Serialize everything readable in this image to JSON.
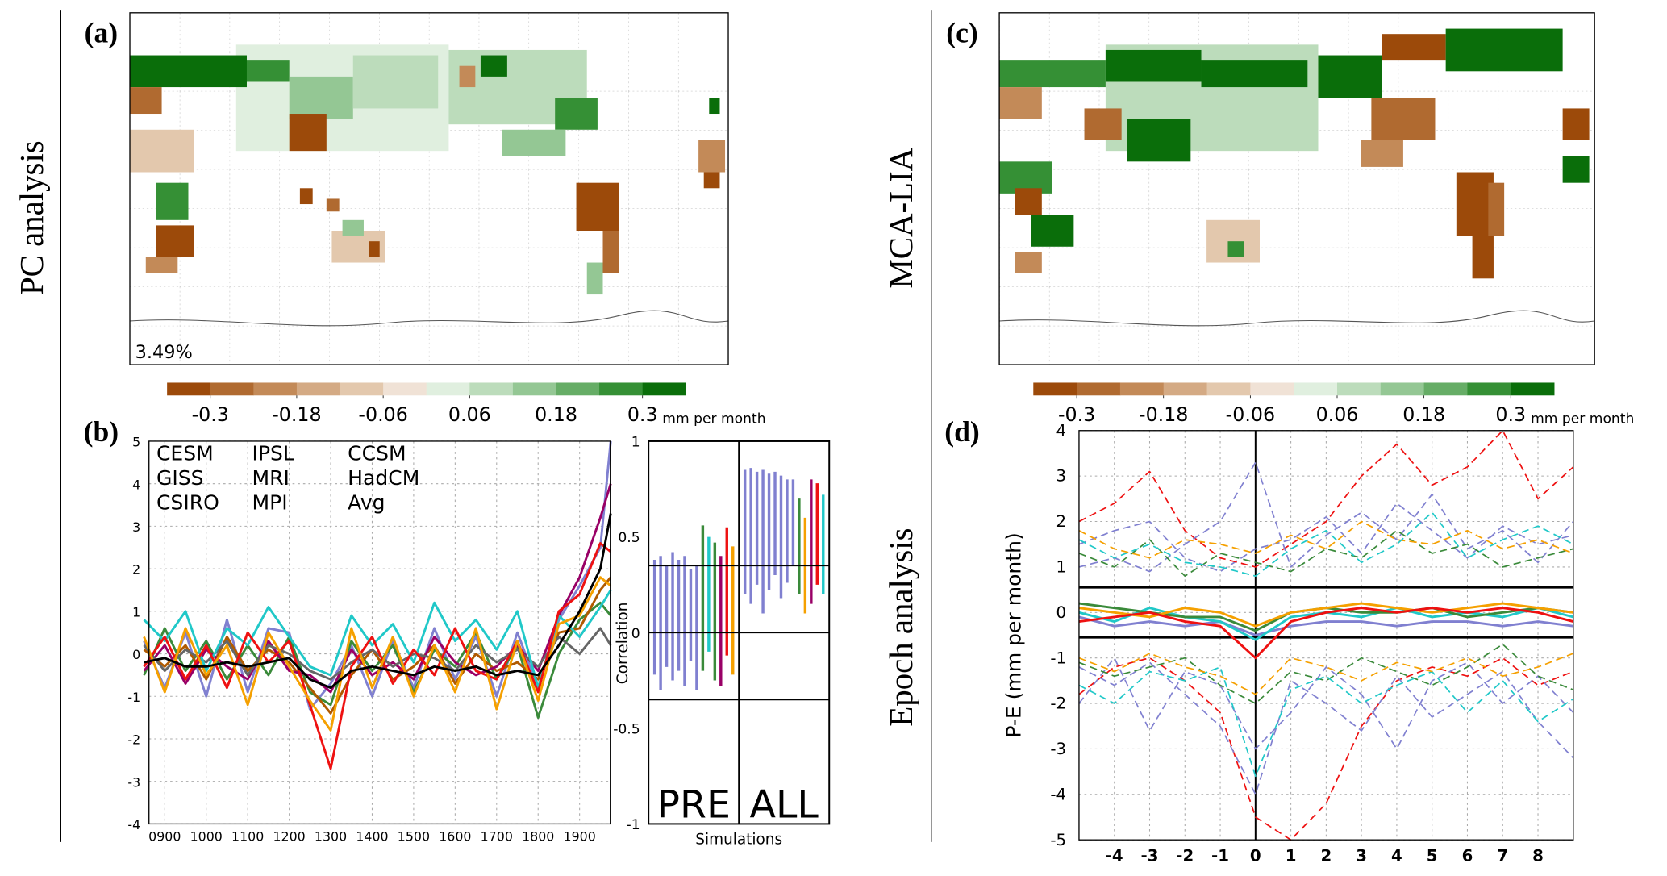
{
  "chart_data": [
    {
      "type": "map",
      "panel_label": "(a)",
      "side_label": "PC analysis",
      "annotation": "3.49%",
      "colorbar": {
        "lim": [
          -0.36,
          0.36
        ],
        "ticks": [
          -0.3,
          -0.18,
          -0.06,
          0.06,
          0.18,
          0.3
        ],
        "label": "mm per month",
        "colors": [
          "#9c4a0a",
          "#b06a30",
          "#c38a58",
          "#d4aa84",
          "#e3c8ad",
          "#f0e2d6",
          "#e0efdf",
          "#bcdcbb",
          "#94c794",
          "#66ad66",
          "#359035",
          "#0a6e0a"
        ]
      }
    },
    {
      "type": "line",
      "panel_label": "(b)",
      "legend": "upper left",
      "grid": true,
      "x": [
        850,
        900,
        950,
        1000,
        1050,
        1100,
        1150,
        1200,
        1250,
        1300,
        1350,
        1400,
        1450,
        1500,
        1550,
        1600,
        1650,
        1700,
        1750,
        1800,
        1850,
        1900,
        1950,
        1975
      ],
      "xlim": [
        862,
        1974
      ],
      "xticks": [
        {
          "value": 900,
          "label": "0900"
        },
        1000,
        1100,
        1200,
        1300,
        1400,
        1500,
        1600,
        1700,
        1800,
        1900
      ],
      "ylim": [
        -4,
        5
      ],
      "yticks": [
        -4,
        -3,
        -2,
        -1,
        0,
        1,
        2,
        3,
        4,
        5
      ],
      "series": [
        {
          "name": "CESM",
          "color": "#8080d0",
          "values": [
            0.3,
            -0.8,
            0.5,
            -1.0,
            0.8,
            -0.9,
            0.6,
            0.5,
            -1.3,
            -0.7,
            0.2,
            -1.0,
            0.3,
            -0.8,
            0.6,
            -0.6,
            0.4,
            -1.0,
            0.5,
            -0.8,
            0.8,
            1.6,
            2.5,
            5.0
          ]
        },
        {
          "name": "GISS",
          "color": "#3a8a3a",
          "values": [
            -0.5,
            0.6,
            -0.4,
            0.3,
            -0.6,
            0.2,
            -0.5,
            0.4,
            -0.9,
            -1.2,
            0.3,
            -0.4,
            0.2,
            -0.9,
            0.1,
            -0.3,
            0.5,
            -0.6,
            0.2,
            -1.5,
            0.0,
            0.8,
            1.2,
            0.9
          ]
        },
        {
          "name": "CSIRO",
          "color": "#b05a00",
          "values": [
            0.1,
            -0.3,
            0.2,
            -0.6,
            0.4,
            -0.4,
            0.1,
            -0.2,
            -0.8,
            -1.4,
            -0.5,
            0.1,
            -0.6,
            -0.3,
            0.2,
            -0.7,
            0.0,
            -0.4,
            -0.2,
            -0.6,
            0.5,
            0.6,
            1.5,
            1.8
          ]
        },
        {
          "name": "IPSL",
          "color": "#990066",
          "values": [
            -0.4,
            0.2,
            -0.7,
            0.1,
            -0.3,
            -0.6,
            0.3,
            -0.4,
            -0.5,
            -0.9,
            0.1,
            -0.5,
            -0.2,
            -0.6,
            0.4,
            -0.2,
            -0.5,
            -0.3,
            0.2,
            -0.4,
            0.9,
            1.8,
            3.2,
            4.0
          ]
        },
        {
          "name": "MRI",
          "color": "#666666",
          "values": [
            0.2,
            -0.4,
            0.1,
            -0.2,
            0.3,
            -0.5,
            0.2,
            0.0,
            -0.4,
            -0.6,
            -0.2,
            0.1,
            -0.3,
            0.0,
            -0.1,
            -0.4,
            0.2,
            -0.2,
            0.1,
            -0.3,
            0.4,
            0.0,
            0.6,
            0.2
          ]
        },
        {
          "name": "MPI",
          "color": "#20c8c8",
          "values": [
            0.8,
            0.3,
            1.0,
            -0.4,
            0.6,
            0.2,
            1.1,
            0.4,
            -0.3,
            -0.5,
            0.9,
            0.2,
            0.7,
            -0.2,
            1.2,
            0.3,
            0.8,
            0.1,
            1.0,
            -0.8,
            0.9,
            0.4,
            1.1,
            1.5
          ]
        },
        {
          "name": "CCSM",
          "color": "#ee1111",
          "values": [
            -0.3,
            0.4,
            -0.6,
            0.2,
            -0.8,
            0.5,
            -0.2,
            0.3,
            -1.2,
            -2.7,
            -0.3,
            0.4,
            -0.7,
            0.1,
            -0.5,
            0.6,
            -0.4,
            -0.6,
            0.3,
            -0.9,
            1.0,
            1.4,
            2.6,
            2.4
          ]
        },
        {
          "name": "HadCM",
          "color": "#f5a000",
          "values": [
            0.4,
            -0.9,
            0.6,
            -0.5,
            0.2,
            -1.2,
            0.5,
            -0.3,
            -1.1,
            -1.8,
            0.6,
            -0.8,
            0.4,
            -1.0,
            0.2,
            -0.9,
            0.6,
            -1.3,
            0.3,
            -1.1,
            0.7,
            0.9,
            1.8,
            1.6
          ]
        },
        {
          "name": "Avg",
          "color": "#000000",
          "values": [
            -0.2,
            -0.1,
            -0.3,
            -0.3,
            -0.2,
            -0.3,
            -0.2,
            -0.1,
            -0.6,
            -0.8,
            -0.4,
            -0.3,
            -0.4,
            -0.5,
            -0.3,
            -0.4,
            -0.3,
            -0.5,
            -0.4,
            -0.5,
            0.2,
            1.0,
            2.0,
            3.3
          ]
        }
      ]
    },
    {
      "type": "range",
      "xlabel": "Simulations",
      "ylabel": "Correlation",
      "ylim": [
        -1,
        1
      ],
      "yticks": [
        -1,
        -0.5,
        0,
        0.5,
        1
      ],
      "hlines": [
        0.35,
        0,
        -0.35
      ],
      "groups": [
        {
          "name": "PRE",
          "low": [
            -0.22,
            -0.3,
            -0.18,
            -0.25,
            -0.2,
            -0.28,
            -0.15,
            -0.3,
            -0.2,
            -0.1,
            -0.25,
            -0.28,
            -0.12,
            -0.22
          ],
          "high": [
            0.38,
            0.4,
            0.35,
            0.42,
            0.38,
            0.4,
            0.33,
            0.35,
            0.56,
            0.5,
            0.47,
            0.4,
            0.55,
            0.45
          ],
          "colors": [
            "#8080d0",
            "#8080d0",
            "#8080d0",
            "#8080d0",
            "#8080d0",
            "#8080d0",
            "#8080d0",
            "#8080d0",
            "#3a8a3a",
            "#20c8c8",
            "#3a8a3a",
            "#990066",
            "#ee1111",
            "#f5a000"
          ]
        },
        {
          "name": "ALL",
          "low": [
            0.2,
            0.15,
            0.25,
            0.1,
            0.22,
            0.3,
            0.18,
            0.26,
            0.35,
            0.2,
            0.1,
            0.15,
            0.25,
            0.2
          ],
          "high": [
            0.85,
            0.86,
            0.84,
            0.85,
            0.83,
            0.84,
            0.82,
            0.8,
            0.8,
            0.7,
            0.6,
            0.8,
            0.78,
            0.72
          ],
          "colors": [
            "#8080d0",
            "#8080d0",
            "#8080d0",
            "#8080d0",
            "#8080d0",
            "#8080d0",
            "#8080d0",
            "#8080d0",
            "#8080d0",
            "#3a8a3a",
            "#f5a000",
            "#990066",
            "#ee1111",
            "#20c8c8"
          ]
        }
      ]
    },
    {
      "type": "map",
      "panel_label": "(c)",
      "side_label": "MCA-LIA",
      "colorbar": {
        "lim": [
          -0.36,
          0.36
        ],
        "ticks": [
          -0.3,
          -0.18,
          -0.06,
          0.06,
          0.18,
          0.3
        ],
        "label": "mm per month",
        "colors": [
          "#9c4a0a",
          "#b06a30",
          "#c38a58",
          "#d4aa84",
          "#e3c8ad",
          "#f0e2d6",
          "#e0efdf",
          "#bcdcbb",
          "#94c794",
          "#66ad66",
          "#359035",
          "#0a6e0a"
        ]
      }
    },
    {
      "type": "line",
      "panel_label": "(d)",
      "side_label": "Epoch analysis",
      "ylabel": "P-E (mm per month)",
      "grid": true,
      "x": [
        -5,
        -4,
        -3,
        -2,
        -1,
        0,
        1,
        2,
        3,
        4,
        5,
        6,
        7,
        8,
        9
      ],
      "xlim": [
        -5,
        9
      ],
      "xticks": [
        -4,
        -3,
        -2,
        -1,
        0,
        1,
        2,
        3,
        4,
        5,
        6,
        7,
        8
      ],
      "ylim": [
        -5,
        4
      ],
      "yticks": [
        -5,
        -4,
        -3,
        -2,
        -1,
        0,
        1,
        2,
        3,
        4
      ],
      "hlines": [
        0.55,
        -0.55
      ],
      "vline": 0,
      "series": [
        {
          "color": "#8080d0",
          "style": "dashed",
          "values": [
            1.5,
            1.8,
            2.0,
            1.2,
            0.9,
            1.4,
            1.6,
            2.1,
            1.3,
            2.4,
            1.8,
            1.2,
            1.9,
            1.5,
            1.7
          ]
        },
        {
          "color": "#ee1111",
          "style": "dashed",
          "values": [
            2.0,
            2.4,
            3.1,
            1.8,
            1.2,
            1.0,
            1.5,
            2.0,
            3.0,
            3.7,
            2.8,
            3.2,
            4.0,
            2.5,
            3.2
          ]
        },
        {
          "color": "#8080d0",
          "style": "dashed",
          "values": [
            1.0,
            1.2,
            0.9,
            1.5,
            2.0,
            3.3,
            1.0,
            1.7,
            2.2,
            1.6,
            2.6,
            1.4,
            1.8,
            1.1,
            2.0
          ]
        },
        {
          "color": "#3a8a3a",
          "style": "dashed",
          "values": [
            1.3,
            1.0,
            1.6,
            0.8,
            1.3,
            1.1,
            0.9,
            1.4,
            1.2,
            1.8,
            1.3,
            1.5,
            1.0,
            1.2,
            1.4
          ]
        },
        {
          "color": "#f5a000",
          "style": "dashed",
          "values": [
            1.8,
            1.4,
            1.2,
            1.6,
            1.5,
            1.3,
            1.7,
            1.4,
            2.0,
            1.6,
            1.5,
            1.8,
            1.4,
            1.6,
            1.3
          ]
        },
        {
          "color": "#20c8c8",
          "style": "dashed",
          "values": [
            1.6,
            1.2,
            1.5,
            1.1,
            1.0,
            0.8,
            1.4,
            1.8,
            1.1,
            1.5,
            2.2,
            1.2,
            1.6,
            1.9,
            1.5
          ]
        },
        {
          "color": "#ee1111",
          "style": "dashed",
          "values": [
            -1.8,
            -1.2,
            -1.0,
            -1.5,
            -2.2,
            -4.5,
            -5.0,
            -4.2,
            -2.5,
            -1.5,
            -1.2,
            -1.4,
            -1.0,
            -1.6,
            -1.3
          ]
        },
        {
          "color": "#8080d0",
          "style": "dashed",
          "values": [
            -1.2,
            -1.6,
            -1.1,
            -1.8,
            -2.5,
            -4.0,
            -1.5,
            -2.0,
            -2.6,
            -1.4,
            -2.3,
            -1.8,
            -1.3,
            -2.4,
            -3.2
          ]
        },
        {
          "color": "#8080d0",
          "style": "dashed",
          "values": [
            -2.0,
            -1.0,
            -2.6,
            -1.3,
            -1.6,
            -3.0,
            -2.2,
            -1.2,
            -1.8,
            -3.0,
            -1.5,
            -1.1,
            -2.0,
            -1.4,
            -2.2
          ]
        },
        {
          "color": "#3a8a3a",
          "style": "dashed",
          "values": [
            -1.1,
            -1.4,
            -1.2,
            -1.0,
            -1.6,
            -2.0,
            -1.3,
            -1.5,
            -1.0,
            -1.3,
            -1.6,
            -1.2,
            -0.7,
            -1.4,
            -1.7
          ]
        },
        {
          "color": "#20c8c8",
          "style": "dashed",
          "values": [
            -1.6,
            -2.0,
            -1.3,
            -1.5,
            -1.2,
            -3.6,
            -1.7,
            -1.4,
            -2.0,
            -1.6,
            -1.3,
            -2.2,
            -1.5,
            -2.4,
            -1.9
          ]
        },
        {
          "color": "#f5a000",
          "style": "dashed",
          "values": [
            -1.0,
            -1.3,
            -0.9,
            -1.2,
            -1.4,
            -1.8,
            -1.0,
            -1.2,
            -1.5,
            -1.1,
            -1.3,
            -1.0,
            -1.4,
            -1.2,
            -0.9
          ]
        },
        {
          "color": "#8080d0",
          "style": "solid",
          "values": [
            -0.1,
            -0.3,
            -0.2,
            -0.3,
            -0.2,
            -0.5,
            -0.3,
            -0.2,
            -0.2,
            -0.3,
            -0.2,
            -0.2,
            -0.3,
            -0.2,
            -0.3
          ]
        },
        {
          "color": "#20c8c8",
          "style": "solid",
          "values": [
            0.0,
            -0.2,
            0.1,
            -0.1,
            -0.2,
            -0.6,
            -0.1,
            0.0,
            -0.1,
            0.1,
            -0.1,
            0.0,
            -0.1,
            0.1,
            -0.1
          ]
        },
        {
          "color": "#3a8a3a",
          "style": "solid",
          "values": [
            0.2,
            0.1,
            0.0,
            -0.1,
            -0.1,
            -0.4,
            0.0,
            0.1,
            0.0,
            0.0,
            0.1,
            -0.1,
            0.0,
            0.1,
            0.0
          ]
        },
        {
          "color": "#f5a000",
          "style": "solid",
          "values": [
            0.1,
            0.0,
            -0.1,
            0.1,
            0.0,
            -0.3,
            0.0,
            0.1,
            0.2,
            0.1,
            0.0,
            0.1,
            0.2,
            0.1,
            0.0
          ]
        },
        {
          "color": "#ee1111",
          "style": "solid",
          "values": [
            -0.2,
            -0.1,
            0.0,
            -0.2,
            -0.3,
            -1.0,
            -0.2,
            0.0,
            0.1,
            0.0,
            0.1,
            0.0,
            0.1,
            0.0,
            -0.2
          ]
        }
      ]
    }
  ]
}
